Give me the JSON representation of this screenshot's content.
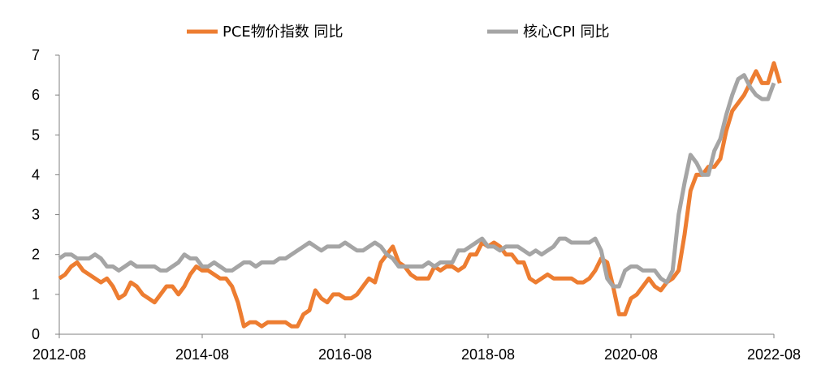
{
  "chart_data": {
    "type": "line",
    "title": "",
    "xlabel": "",
    "ylabel": "",
    "ylim": [
      0,
      7
    ],
    "yticks": [
      0,
      1,
      2,
      3,
      4,
      5,
      6,
      7
    ],
    "x_tick_labels": [
      "2012-08",
      "2014-08",
      "2016-08",
      "2018-08",
      "2020-08",
      "2022-08"
    ],
    "x_start": "2012-08",
    "x_end": "2022-08",
    "legend_position": "top-center",
    "grid": false,
    "series": [
      {
        "name": "PCE物价指数 同比",
        "color": "#ED7D31",
        "points": [
          [
            "2012-08",
            1.4
          ],
          [
            "2012-09",
            1.5
          ],
          [
            "2012-10",
            1.7
          ],
          [
            "2012-11",
            1.8
          ],
          [
            "2012-12",
            1.6
          ],
          [
            "2013-01",
            1.5
          ],
          [
            "2013-02",
            1.4
          ],
          [
            "2013-03",
            1.3
          ],
          [
            "2013-04",
            1.4
          ],
          [
            "2013-05",
            1.2
          ],
          [
            "2013-06",
            0.9
          ],
          [
            "2013-07",
            1.0
          ],
          [
            "2013-08",
            1.3
          ],
          [
            "2013-09",
            1.2
          ],
          [
            "2013-10",
            1.0
          ],
          [
            "2013-11",
            0.9
          ],
          [
            "2013-12",
            0.8
          ],
          [
            "2014-01",
            1.0
          ],
          [
            "2014-02",
            1.2
          ],
          [
            "2014-03",
            1.2
          ],
          [
            "2014-04",
            1.0
          ],
          [
            "2014-05",
            1.2
          ],
          [
            "2014-06",
            1.5
          ],
          [
            "2014-07",
            1.7
          ],
          [
            "2014-08",
            1.6
          ],
          [
            "2014-09",
            1.6
          ],
          [
            "2014-10",
            1.5
          ],
          [
            "2014-11",
            1.4
          ],
          [
            "2014-12",
            1.4
          ],
          [
            "2015-01",
            1.2
          ],
          [
            "2015-02",
            0.8
          ],
          [
            "2015-03",
            0.2
          ],
          [
            "2015-04",
            0.3
          ],
          [
            "2015-05",
            0.3
          ],
          [
            "2015-06",
            0.2
          ],
          [
            "2015-07",
            0.3
          ],
          [
            "2015-08",
            0.3
          ],
          [
            "2015-09",
            0.3
          ],
          [
            "2015-10",
            0.3
          ],
          [
            "2015-11",
            0.2
          ],
          [
            "2015-12",
            0.2
          ],
          [
            "2016-01",
            0.5
          ],
          [
            "2016-02",
            0.6
          ],
          [
            "2016-03",
            1.1
          ],
          [
            "2016-04",
            0.9
          ],
          [
            "2016-05",
            0.8
          ],
          [
            "2016-06",
            1.0
          ],
          [
            "2016-07",
            1.0
          ],
          [
            "2016-08",
            0.9
          ],
          [
            "2016-09",
            0.9
          ],
          [
            "2016-10",
            1.0
          ],
          [
            "2016-11",
            1.2
          ],
          [
            "2016-12",
            1.4
          ],
          [
            "2017-01",
            1.3
          ],
          [
            "2017-02",
            1.8
          ],
          [
            "2017-03",
            2.0
          ],
          [
            "2017-04",
            2.2
          ],
          [
            "2017-05",
            1.8
          ],
          [
            "2017-06",
            1.7
          ],
          [
            "2017-07",
            1.5
          ],
          [
            "2017-08",
            1.4
          ],
          [
            "2017-09",
            1.4
          ],
          [
            "2017-10",
            1.4
          ],
          [
            "2017-11",
            1.7
          ],
          [
            "2017-12",
            1.6
          ],
          [
            "2018-01",
            1.7
          ],
          [
            "2018-02",
            1.7
          ],
          [
            "2018-03",
            1.6
          ],
          [
            "2018-04",
            1.7
          ],
          [
            "2018-05",
            2.0
          ],
          [
            "2018-06",
            2.0
          ],
          [
            "2018-07",
            2.3
          ],
          [
            "2018-08",
            2.2
          ],
          [
            "2018-09",
            2.3
          ],
          [
            "2018-10",
            2.2
          ],
          [
            "2018-11",
            2.0
          ],
          [
            "2018-12",
            2.0
          ],
          [
            "2019-01",
            1.8
          ],
          [
            "2019-02",
            1.8
          ],
          [
            "2019-03",
            1.4
          ],
          [
            "2019-04",
            1.3
          ],
          [
            "2019-05",
            1.4
          ],
          [
            "2019-06",
            1.5
          ],
          [
            "2019-07",
            1.4
          ],
          [
            "2019-08",
            1.4
          ],
          [
            "2019-09",
            1.4
          ],
          [
            "2019-10",
            1.4
          ],
          [
            "2019-11",
            1.3
          ],
          [
            "2019-12",
            1.3
          ],
          [
            "2020-01",
            1.4
          ],
          [
            "2020-02",
            1.6
          ],
          [
            "2020-03",
            1.9
          ],
          [
            "2020-04",
            1.8
          ],
          [
            "2020-05",
            1.2
          ],
          [
            "2020-06",
            0.5
          ],
          [
            "2020-07",
            0.5
          ],
          [
            "2020-08",
            0.9
          ],
          [
            "2020-09",
            1.0
          ],
          [
            "2020-10",
            1.2
          ],
          [
            "2020-11",
            1.4
          ],
          [
            "2020-12",
            1.2
          ],
          [
            "2021-01",
            1.1
          ],
          [
            "2021-02",
            1.3
          ],
          [
            "2021-03",
            1.4
          ],
          [
            "2021-04",
            1.6
          ],
          [
            "2021-05",
            2.5
          ],
          [
            "2021-06",
            3.6
          ],
          [
            "2021-07",
            4.0
          ],
          [
            "2021-08",
            4.0
          ],
          [
            "2021-09",
            4.2
          ],
          [
            "2021-10",
            4.2
          ],
          [
            "2021-11",
            4.4
          ],
          [
            "2021-12",
            5.1
          ],
          [
            "2022-01",
            5.6
          ],
          [
            "2022-02",
            5.8
          ],
          [
            "2022-03",
            6.0
          ],
          [
            "2022-04",
            6.3
          ],
          [
            "2022-05",
            6.6
          ],
          [
            "2022-06",
            6.3
          ],
          [
            "2022-07",
            6.3
          ],
          [
            "2022-08",
            6.8
          ],
          [
            "2022-09",
            6.3
          ]
        ]
      },
      {
        "name": "核心CPI 同比",
        "color": "#A5A5A5",
        "points": [
          [
            "2012-08",
            1.9
          ],
          [
            "2012-09",
            2.0
          ],
          [
            "2012-10",
            2.0
          ],
          [
            "2012-11",
            1.9
          ],
          [
            "2012-12",
            1.9
          ],
          [
            "2013-01",
            1.9
          ],
          [
            "2013-02",
            2.0
          ],
          [
            "2013-03",
            1.9
          ],
          [
            "2013-04",
            1.7
          ],
          [
            "2013-05",
            1.7
          ],
          [
            "2013-06",
            1.6
          ],
          [
            "2013-07",
            1.7
          ],
          [
            "2013-08",
            1.8
          ],
          [
            "2013-09",
            1.7
          ],
          [
            "2013-10",
            1.7
          ],
          [
            "2013-11",
            1.7
          ],
          [
            "2013-12",
            1.7
          ],
          [
            "2014-01",
            1.6
          ],
          [
            "2014-02",
            1.6
          ],
          [
            "2014-03",
            1.7
          ],
          [
            "2014-04",
            1.8
          ],
          [
            "2014-05",
            2.0
          ],
          [
            "2014-06",
            1.9
          ],
          [
            "2014-07",
            1.9
          ],
          [
            "2014-08",
            1.7
          ],
          [
            "2014-09",
            1.7
          ],
          [
            "2014-10",
            1.8
          ],
          [
            "2014-11",
            1.7
          ],
          [
            "2014-12",
            1.6
          ],
          [
            "2015-01",
            1.6
          ],
          [
            "2015-02",
            1.7
          ],
          [
            "2015-03",
            1.8
          ],
          [
            "2015-04",
            1.8
          ],
          [
            "2015-05",
            1.7
          ],
          [
            "2015-06",
            1.8
          ],
          [
            "2015-07",
            1.8
          ],
          [
            "2015-08",
            1.8
          ],
          [
            "2015-09",
            1.9
          ],
          [
            "2015-10",
            1.9
          ],
          [
            "2015-11",
            2.0
          ],
          [
            "2015-12",
            2.1
          ],
          [
            "2016-01",
            2.2
          ],
          [
            "2016-02",
            2.3
          ],
          [
            "2016-03",
            2.2
          ],
          [
            "2016-04",
            2.1
          ],
          [
            "2016-05",
            2.2
          ],
          [
            "2016-06",
            2.2
          ],
          [
            "2016-07",
            2.2
          ],
          [
            "2016-08",
            2.3
          ],
          [
            "2016-09",
            2.2
          ],
          [
            "2016-10",
            2.1
          ],
          [
            "2016-11",
            2.1
          ],
          [
            "2016-12",
            2.2
          ],
          [
            "2017-01",
            2.3
          ],
          [
            "2017-02",
            2.2
          ],
          [
            "2017-03",
            2.0
          ],
          [
            "2017-04",
            1.9
          ],
          [
            "2017-05",
            1.7
          ],
          [
            "2017-06",
            1.7
          ],
          [
            "2017-07",
            1.7
          ],
          [
            "2017-08",
            1.7
          ],
          [
            "2017-09",
            1.7
          ],
          [
            "2017-10",
            1.8
          ],
          [
            "2017-11",
            1.7
          ],
          [
            "2017-12",
            1.8
          ],
          [
            "2018-01",
            1.8
          ],
          [
            "2018-02",
            1.8
          ],
          [
            "2018-03",
            2.1
          ],
          [
            "2018-04",
            2.1
          ],
          [
            "2018-05",
            2.2
          ],
          [
            "2018-06",
            2.3
          ],
          [
            "2018-07",
            2.4
          ],
          [
            "2018-08",
            2.2
          ],
          [
            "2018-09",
            2.2
          ],
          [
            "2018-10",
            2.1
          ],
          [
            "2018-11",
            2.2
          ],
          [
            "2018-12",
            2.2
          ],
          [
            "2019-01",
            2.2
          ],
          [
            "2019-02",
            2.1
          ],
          [
            "2019-03",
            2.0
          ],
          [
            "2019-04",
            2.1
          ],
          [
            "2019-05",
            2.0
          ],
          [
            "2019-06",
            2.1
          ],
          [
            "2019-07",
            2.2
          ],
          [
            "2019-08",
            2.4
          ],
          [
            "2019-09",
            2.4
          ],
          [
            "2019-10",
            2.3
          ],
          [
            "2019-11",
            2.3
          ],
          [
            "2019-12",
            2.3
          ],
          [
            "2020-01",
            2.3
          ],
          [
            "2020-02",
            2.4
          ],
          [
            "2020-03",
            2.1
          ],
          [
            "2020-04",
            1.4
          ],
          [
            "2020-05",
            1.2
          ],
          [
            "2020-06",
            1.2
          ],
          [
            "2020-07",
            1.6
          ],
          [
            "2020-08",
            1.7
          ],
          [
            "2020-09",
            1.7
          ],
          [
            "2020-10",
            1.6
          ],
          [
            "2020-11",
            1.6
          ],
          [
            "2020-12",
            1.6
          ],
          [
            "2021-01",
            1.4
          ],
          [
            "2021-02",
            1.3
          ],
          [
            "2021-03",
            1.6
          ],
          [
            "2021-04",
            3.0
          ],
          [
            "2021-05",
            3.8
          ],
          [
            "2021-06",
            4.5
          ],
          [
            "2021-07",
            4.3
          ],
          [
            "2021-08",
            4.0
          ],
          [
            "2021-09",
            4.0
          ],
          [
            "2021-10",
            4.6
          ],
          [
            "2021-11",
            4.9
          ],
          [
            "2021-12",
            5.5
          ],
          [
            "2022-01",
            6.0
          ],
          [
            "2022-02",
            6.4
          ],
          [
            "2022-03",
            6.5
          ],
          [
            "2022-04",
            6.2
          ],
          [
            "2022-05",
            6.0
          ],
          [
            "2022-06",
            5.9
          ],
          [
            "2022-07",
            5.9
          ],
          [
            "2022-08",
            6.3
          ]
        ]
      }
    ]
  }
}
